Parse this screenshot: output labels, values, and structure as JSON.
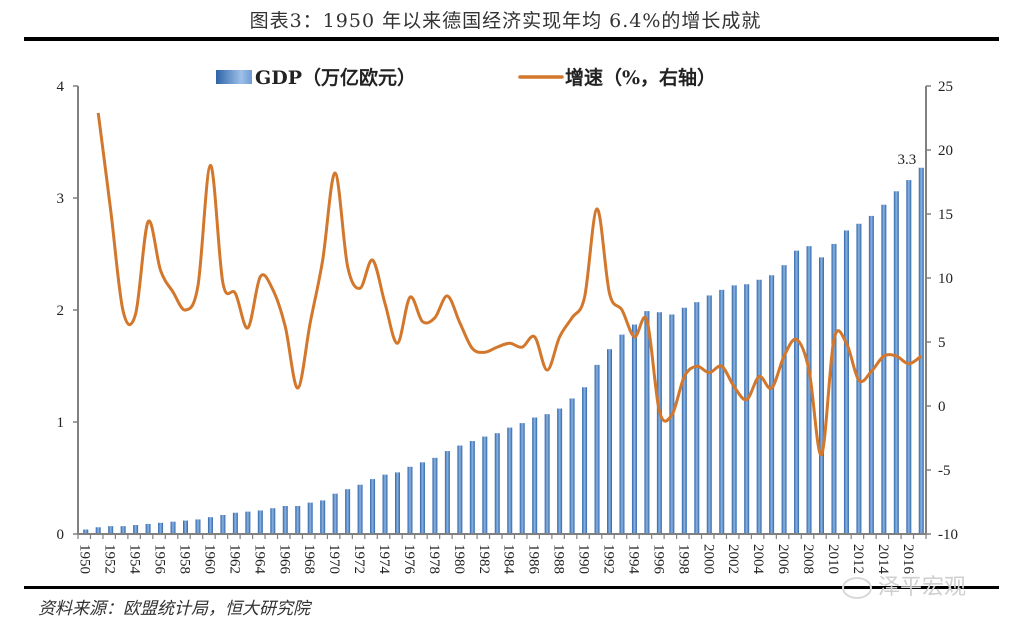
{
  "header": {
    "title": "图表3：1950 年以来德国经济实现年均 6.4%的增长成就"
  },
  "footer": {
    "source": "资料来源：欧盟统计局，恒大研究院",
    "watermark": "泽平宏观"
  },
  "colors": {
    "bar": "#4f81bd",
    "bar_highlight": "#8cb4e2",
    "line": "#d2772b",
    "axis": "#808080"
  },
  "chart_data": {
    "type": "bar+line",
    "title": "图表3：1950 年以来德国经济实现年均 6.4%的增长成就",
    "xlabel": "",
    "ylabel_left": "GDP（万亿欧元）",
    "ylabel_right": "增速（%，右轴）",
    "ylim_left": [
      0,
      4
    ],
    "yticks_left": [
      "0",
      "1",
      "2",
      "3",
      "4"
    ],
    "ylim_right": [
      -10,
      25
    ],
    "yticks_right": [
      "-10",
      "-5",
      "0",
      "5",
      "10",
      "15",
      "20",
      "25"
    ],
    "grid": false,
    "legend_position": "top",
    "legend": [
      "GDP（万亿欧元）",
      "增速（%，右轴）"
    ],
    "x_tick_labels": [
      "1950",
      "1952",
      "1954",
      "1956",
      "1958",
      "1960",
      "1962",
      "1964",
      "1966",
      "1968",
      "1970",
      "1972",
      "1974",
      "1976",
      "1978",
      "1980",
      "1982",
      "1984",
      "1986",
      "1988",
      "1990",
      "1992",
      "1994",
      "1996",
      "1998",
      "2000",
      "2002",
      "2004",
      "2006",
      "2008",
      "2010",
      "2012",
      "2014",
      "2016"
    ],
    "annotations": [
      {
        "year": 2017,
        "text": "3.3"
      }
    ],
    "x": [
      1950,
      1951,
      1952,
      1953,
      1954,
      1955,
      1956,
      1957,
      1958,
      1959,
      1960,
      1961,
      1962,
      1963,
      1964,
      1965,
      1966,
      1967,
      1968,
      1969,
      1970,
      1971,
      1972,
      1973,
      1974,
      1975,
      1976,
      1977,
      1978,
      1979,
      1980,
      1981,
      1982,
      1983,
      1984,
      1985,
      1986,
      1987,
      1988,
      1989,
      1990,
      1991,
      1992,
      1993,
      1994,
      1995,
      1996,
      1997,
      1998,
      1999,
      2000,
      2001,
      2002,
      2003,
      2004,
      2005,
      2006,
      2007,
      2008,
      2009,
      2010,
      2011,
      2012,
      2013,
      2014,
      2015,
      2016,
      2017
    ],
    "series": [
      {
        "name": "GDP（万亿欧元）",
        "type": "bar",
        "axis": "left",
        "values": [
          0.04,
          0.06,
          0.07,
          0.07,
          0.08,
          0.09,
          0.1,
          0.11,
          0.12,
          0.13,
          0.15,
          0.17,
          0.19,
          0.2,
          0.21,
          0.23,
          0.25,
          0.25,
          0.28,
          0.3,
          0.36,
          0.4,
          0.44,
          0.49,
          0.53,
          0.55,
          0.6,
          0.64,
          0.68,
          0.74,
          0.79,
          0.83,
          0.87,
          0.9,
          0.95,
          0.99,
          1.04,
          1.07,
          1.12,
          1.21,
          1.31,
          1.51,
          1.65,
          1.78,
          1.87,
          1.99,
          1.98,
          1.96,
          2.02,
          2.07,
          2.13,
          2.18,
          2.22,
          2.23,
          2.27,
          2.31,
          2.4,
          2.53,
          2.57,
          2.47,
          2.59,
          2.71,
          2.77,
          2.84,
          2.94,
          3.06,
          3.16,
          3.27
        ]
      },
      {
        "name": "增速（%，右轴）",
        "type": "line",
        "axis": "right",
        "values": [
          null,
          22.9,
          15.3,
          7.4,
          7.2,
          14.4,
          10.6,
          8.9,
          7.5,
          9.4,
          18.8,
          9.6,
          8.8,
          6.1,
          10.1,
          9.1,
          6.2,
          1.4,
          6.5,
          11.4,
          18.2,
          10.9,
          9.2,
          11.4,
          8.0,
          4.9,
          8.5,
          6.6,
          6.9,
          8.6,
          6.5,
          4.5,
          4.2,
          4.6,
          4.9,
          4.6,
          5.4,
          2.8,
          5.4,
          6.9,
          8.5,
          15.4,
          8.8,
          7.5,
          5.4,
          6.7,
          -0.4,
          -0.7,
          2.3,
          3.1,
          2.6,
          3.1,
          1.5,
          0.5,
          2.3,
          1.4,
          3.9,
          5.2,
          2.8,
          -3.8,
          5.2,
          4.9,
          2.0,
          2.7,
          3.9,
          3.9,
          3.3,
          3.9
        ]
      }
    ]
  }
}
